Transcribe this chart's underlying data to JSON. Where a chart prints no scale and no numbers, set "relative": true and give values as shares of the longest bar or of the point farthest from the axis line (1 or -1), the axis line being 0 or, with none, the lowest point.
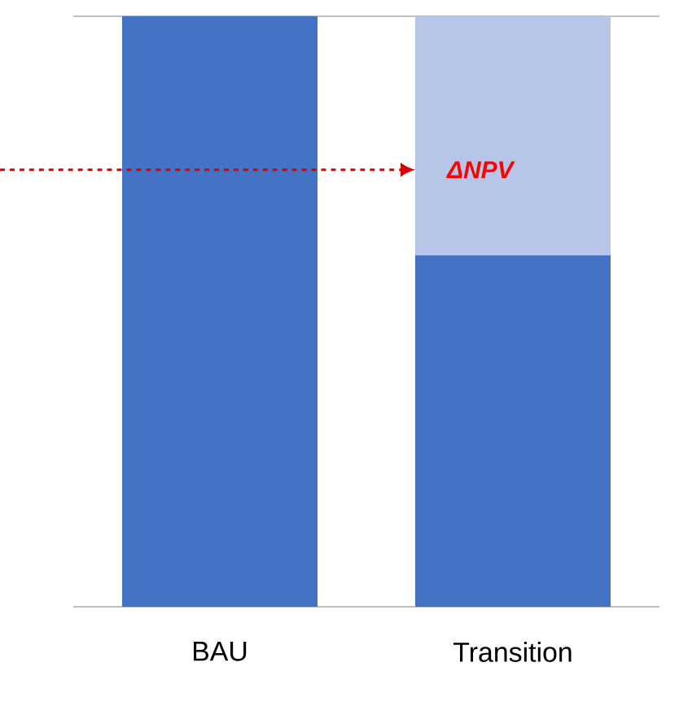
{
  "chart_data": {
    "type": "bar",
    "stacked": true,
    "relative": true,
    "categories": [
      "BAU",
      "Transition"
    ],
    "series": [
      {
        "color": "#4472c4",
        "values": [
          1,
          0.595
        ]
      },
      {
        "color": "#b7c6e8",
        "values": [
          0,
          0.405
        ]
      }
    ],
    "annotations": [
      "ΔNPV"
    ]
  }
}
